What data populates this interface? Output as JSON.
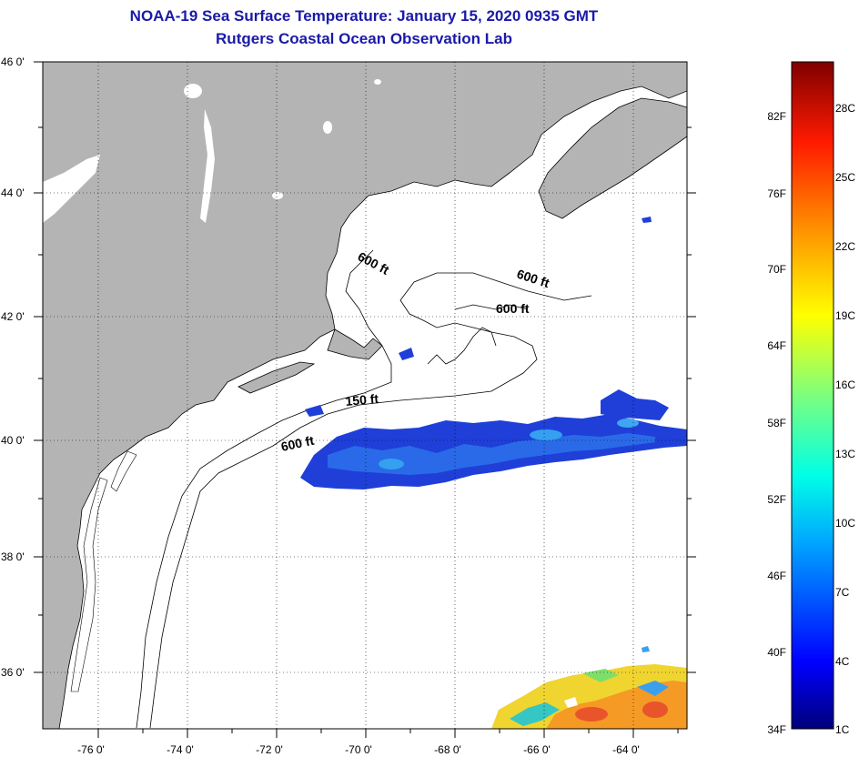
{
  "header": {
    "title": "NOAA-19 Sea Surface Temperature:  January 15, 2020 0935 GMT",
    "subtitle": "Rutgers Coastal Ocean Observation Lab"
  },
  "map": {
    "longitude_labels": [
      "-76 0'",
      "-74 0'",
      "-72 0'",
      "-70 0'",
      "-68 0'",
      "-66 0'",
      "-64 0'"
    ],
    "latitude_labels": [
      "46 0'",
      "44 0'",
      "42 0'",
      "40 0'",
      "38 0'",
      "36 0'"
    ],
    "contour_labels": [
      "600 ft",
      "600 ft",
      "600 ft",
      "150 ft",
      "600 ft"
    ],
    "colors": {
      "land": "#b4b4b4",
      "ocean": "#ffffff",
      "cold_sst": "#1d3fd6"
    }
  },
  "colorbar": {
    "fahrenheit_labels": [
      "82F",
      "76F",
      "70F",
      "64F",
      "58F",
      "52F",
      "46F",
      "40F",
      "34F"
    ],
    "celsius_labels": [
      "28C",
      "25C",
      "22C",
      "19C",
      "16C",
      "13C",
      "10C",
      "7C",
      "4C",
      "1C"
    ]
  }
}
